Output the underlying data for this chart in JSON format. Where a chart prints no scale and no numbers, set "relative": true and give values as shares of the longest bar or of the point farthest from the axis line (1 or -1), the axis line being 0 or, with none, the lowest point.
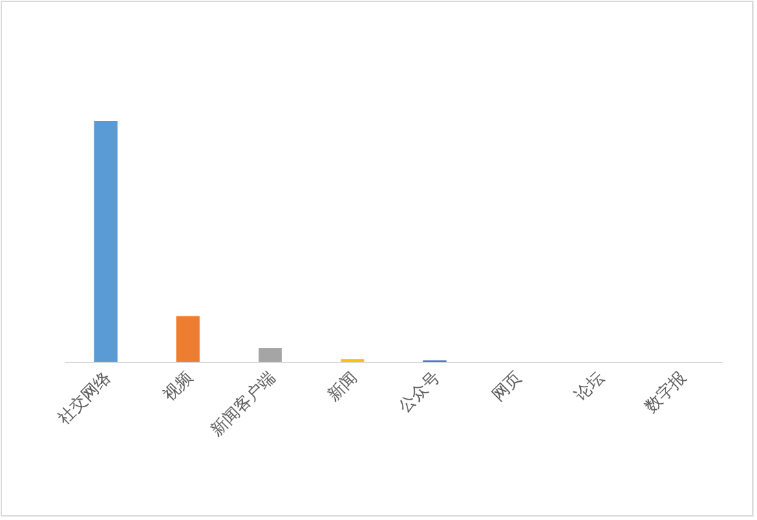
{
  "chart_data": {
    "type": "bar",
    "relative": true,
    "categories": [
      "社交网络",
      "视频",
      "新闻客户端",
      "新闻",
      "公众号",
      "网页",
      "论坛",
      "数字报"
    ],
    "values": [
      1,
      0.19,
      0.057,
      0.011,
      0.006,
      0,
      0,
      0
    ],
    "colors": [
      "#5b9bd5",
      "#ed7d31",
      "#a5a5a5",
      "#ffc000",
      "#4472c4",
      "#70ad47",
      "#255e91",
      "#9e480e"
    ]
  }
}
